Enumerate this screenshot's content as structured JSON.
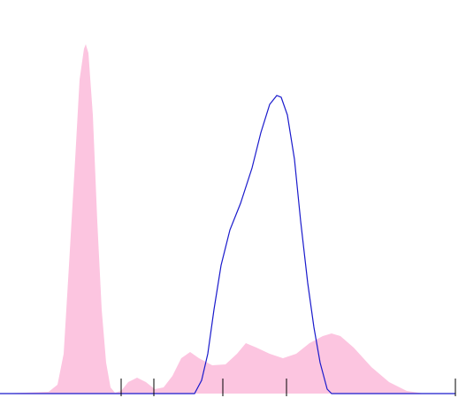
{
  "chart_data": {
    "type": "area",
    "xlim": [
      0,
      527
    ],
    "ylim": [
      0,
      100
    ],
    "series": [
      {
        "kind": "area",
        "color": "#fcc5e0",
        "x": [
          0,
          55,
          65,
          72,
          78,
          85,
          90,
          95,
          97,
          100,
          105,
          110,
          115,
          120,
          125,
          130,
          137,
          145,
          155,
          165,
          175,
          185,
          195,
          205,
          215,
          225,
          240,
          255,
          268,
          278,
          290,
          305,
          320,
          335,
          350,
          365,
          375,
          385,
          400,
          420,
          440,
          460,
          480,
          527
        ],
        "values": [
          0,
          0.5,
          2.5,
          11.25,
          36.25,
          66.25,
          88.75,
          97.5,
          98.75,
          96.25,
          78.75,
          48.75,
          23.75,
          8.75,
          1.75,
          0.25,
          0.75,
          3.25,
          4.5,
          3.25,
          1.25,
          1.75,
          5,
          10,
          11.75,
          10,
          8,
          8.25,
          11.25,
          14.25,
          13,
          11.25,
          10,
          11.25,
          14.25,
          16.25,
          17,
          16.25,
          13,
          7.5,
          3.25,
          0.75,
          0,
          0
        ]
      },
      {
        "kind": "line",
        "color": "#1a1acc",
        "x": [
          0,
          220,
          228,
          235,
          242,
          250,
          260,
          272,
          285,
          295,
          305,
          313,
          318,
          325,
          333,
          340,
          348,
          355,
          362,
          370,
          375,
          515
        ],
        "values": [
          0,
          0,
          3.75,
          11.25,
          23.75,
          36.25,
          46.25,
          53.75,
          63.75,
          73.75,
          81.75,
          84.25,
          83.75,
          78.75,
          66.25,
          48.75,
          31.25,
          18.75,
          8.75,
          1.25,
          0,
          0
        ]
      }
    ],
    "markers": [
      137,
      174,
      252,
      324,
      515
    ],
    "marker_color": "#000000"
  }
}
